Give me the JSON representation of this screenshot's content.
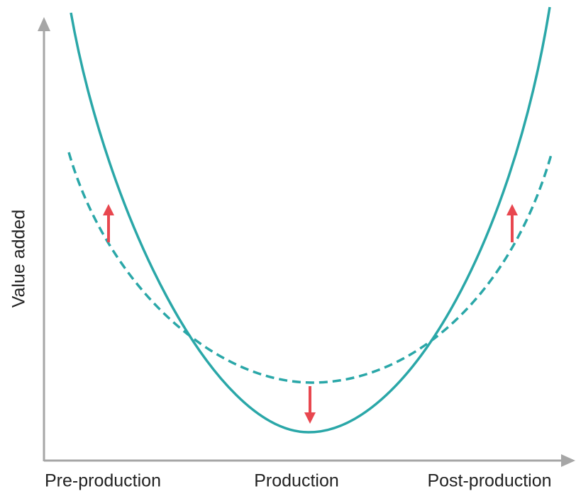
{
  "y_axis": {
    "label": "Value added"
  },
  "x_axis": {
    "labels": [
      "Pre-production",
      "Production",
      "Post-production"
    ]
  }
}
